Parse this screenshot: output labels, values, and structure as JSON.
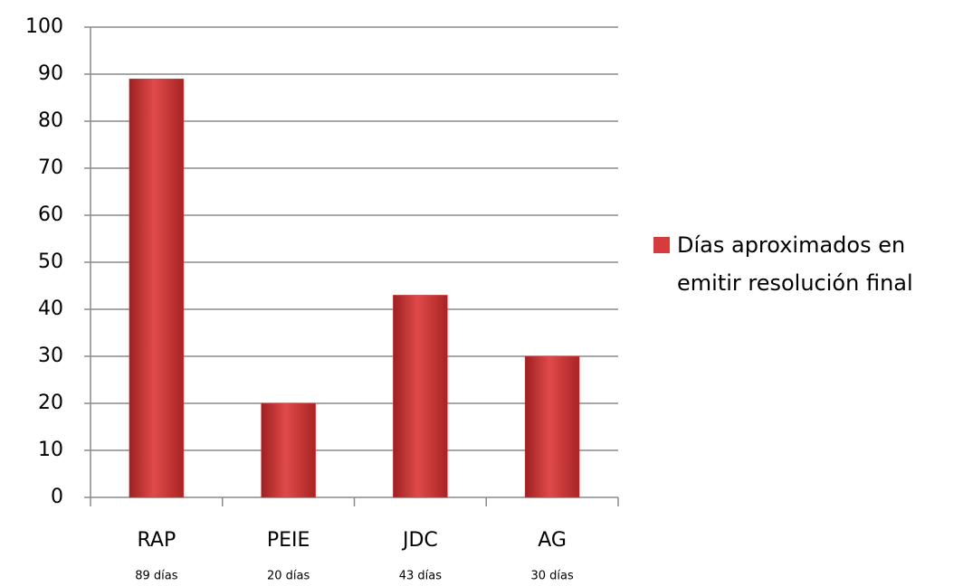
{
  "chart_data": {
    "type": "bar",
    "categories": [
      "RAP",
      "PEIE",
      "JDC",
      "AG"
    ],
    "values": [
      89,
      20,
      43,
      30
    ],
    "value_labels": [
      "89 días",
      "20 días",
      "43 días",
      "30 días"
    ],
    "series_name": "Días aproximados en emitir resolución final",
    "color": "#d63c3c",
    "ylim": [
      0,
      100
    ],
    "yticks": [
      0,
      10,
      20,
      30,
      40,
      50,
      60,
      70,
      80,
      90,
      100
    ],
    "grid": true,
    "legend": "right"
  }
}
